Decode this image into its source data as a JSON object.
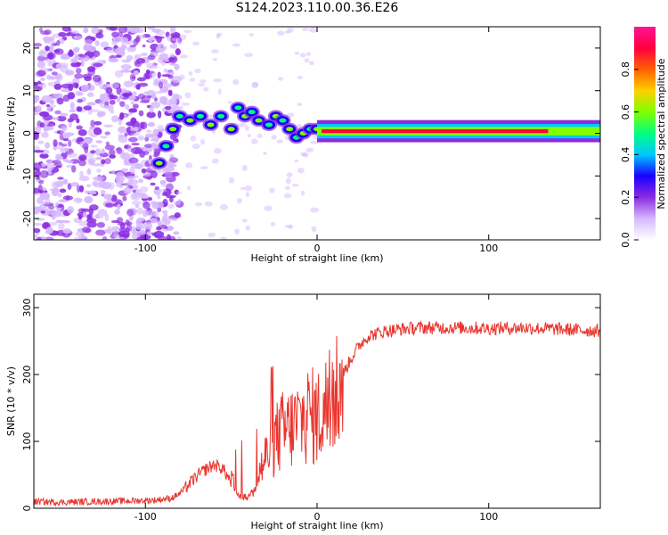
{
  "title": "S124.2023.110.00.36.E26",
  "chart_data": [
    {
      "type": "heatmap",
      "title": "S124.2023.110.00.36.E26",
      "xlabel": "Height of straight line (km)",
      "ylabel": "Frequency (Hz)",
      "xlim": [
        -165,
        165
      ],
      "ylim": [
        -25,
        25
      ],
      "xticks": [
        -100,
        0,
        100
      ],
      "xtick_labels": [
        "-100",
        "0",
        "100"
      ],
      "yticks": [
        -20,
        -10,
        0,
        10,
        20
      ],
      "ytick_labels": [
        "-20",
        "-10",
        "0",
        "10",
        "20"
      ],
      "colorbar": {
        "label": "Normalized spectral amplitude",
        "range": [
          0.0,
          1.0
        ],
        "ticks": [
          0.0,
          0.2,
          0.4,
          0.6,
          0.8
        ],
        "tick_labels": [
          "0.0",
          "0.2",
          "0.4",
          "0.6",
          "0.8"
        ],
        "colormap": [
          "#ffffff",
          "#d6b8ff",
          "#8a2be2",
          "#1a00ff",
          "#00c8ff",
          "#00ff80",
          "#80ff00",
          "#ffd000",
          "#ff6000",
          "#ff0040",
          "#ff1493"
        ]
      },
      "features": {
        "noise_region_km": [
          -165,
          -90
        ],
        "wandering_signal_km": [
          -95,
          0
        ],
        "steady_signal_km": [
          0,
          165
        ],
        "steady_signal_freq_hz": 0.5,
        "wandering_path": [
          {
            "x": -92,
            "y": -7
          },
          {
            "x": -88,
            "y": -3
          },
          {
            "x": -84,
            "y": 1
          },
          {
            "x": -80,
            "y": 4
          },
          {
            "x": -74,
            "y": 3
          },
          {
            "x": -68,
            "y": 4
          },
          {
            "x": -62,
            "y": 2
          },
          {
            "x": -56,
            "y": 4
          },
          {
            "x": -50,
            "y": 1
          },
          {
            "x": -46,
            "y": 6
          },
          {
            "x": -42,
            "y": 4
          },
          {
            "x": -38,
            "y": 5
          },
          {
            "x": -34,
            "y": 3
          },
          {
            "x": -28,
            "y": 2
          },
          {
            "x": -24,
            "y": 4
          },
          {
            "x": -20,
            "y": 3
          },
          {
            "x": -16,
            "y": 1
          },
          {
            "x": -12,
            "y": -1
          },
          {
            "x": -8,
            "y": 0
          },
          {
            "x": -4,
            "y": 1
          },
          {
            "x": 0,
            "y": 1
          }
        ]
      }
    },
    {
      "type": "line",
      "xlabel": "Height of straight line (km)",
      "ylabel": "SNR (10 * v/v)",
      "xlim": [
        -165,
        165
      ],
      "ylim": [
        0,
        320
      ],
      "xticks": [
        -100,
        0,
        100
      ],
      "xtick_labels": [
        "-100",
        "0",
        "100"
      ],
      "yticks": [
        0,
        100,
        200,
        300
      ],
      "ytick_labels": [
        "0",
        "100",
        "200",
        "300"
      ],
      "series": [
        {
          "name": "SNR",
          "color": "#e8352e",
          "x": [
            -165,
            -150,
            -130,
            -110,
            -95,
            -85,
            -80,
            -75,
            -70,
            -65,
            -60,
            -55,
            -50,
            -45,
            -40,
            -35,
            -30,
            -25,
            -20,
            -15,
            -10,
            -5,
            0,
            5,
            10,
            15,
            20,
            25,
            30,
            40,
            50,
            60,
            80,
            100,
            120,
            140,
            165
          ],
          "values": [
            10,
            9,
            10,
            11,
            12,
            15,
            22,
            35,
            48,
            58,
            65,
            60,
            38,
            18,
            16,
            45,
            75,
            100,
            115,
            120,
            130,
            140,
            135,
            150,
            170,
            200,
            225,
            245,
            258,
            265,
            268,
            270,
            270,
            269,
            270,
            268,
            265
          ]
        }
      ]
    }
  ]
}
